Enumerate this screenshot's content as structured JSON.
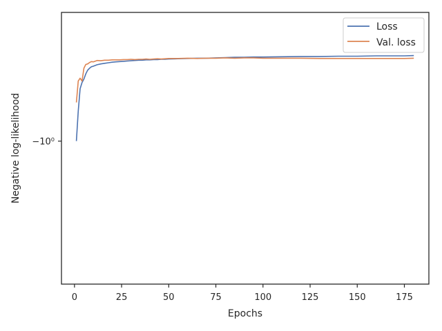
{
  "chart_data": {
    "type": "line",
    "xlabel": "Epochs",
    "ylabel": "Negative log-likelihood",
    "x_ticks": [
      "0",
      "25",
      "50",
      "75",
      "100",
      "125",
      "150",
      "175"
    ],
    "y_tick_label": "−10⁰",
    "y_scale": "symlog",
    "xlim": [
      -6.9,
      188
    ],
    "ylim": [
      -1.05,
      -0.955
    ],
    "legend": {
      "placement": "top-right",
      "entries": [
        "Loss",
        "Val. loss"
      ]
    },
    "colors": {
      "loss": "#4c72b0",
      "val_loss": "#dd8452",
      "axes": "#262626"
    },
    "series": [
      {
        "name": "Loss",
        "color": "#4c72b0",
        "x": [
          1,
          2,
          3,
          4,
          5,
          6,
          7,
          8,
          9,
          10,
          12,
          14,
          16,
          18,
          20,
          22,
          24,
          26,
          28,
          30,
          32,
          34,
          36,
          38,
          40,
          42,
          44,
          46,
          48,
          50,
          55,
          60,
          65,
          70,
          75,
          80,
          85,
          90,
          95,
          100,
          110,
          120,
          130,
          140,
          150,
          160,
          170,
          175,
          180
        ],
        "y": [
          -1.0,
          -0.9895,
          -0.9817,
          -0.9795,
          -0.9783,
          -0.9765,
          -0.9752,
          -0.9745,
          -0.974,
          -0.9738,
          -0.9733,
          -0.973,
          -0.9728,
          -0.9726,
          -0.9724,
          -0.9723,
          -0.9722,
          -0.9721,
          -0.972,
          -0.9719,
          -0.9718,
          -0.9717,
          -0.9717,
          -0.9716,
          -0.9716,
          -0.9715,
          -0.9715,
          -0.9714,
          -0.9714,
          -0.9713,
          -0.9712,
          -0.9711,
          -0.971,
          -0.971,
          -0.9709,
          -0.9708,
          -0.9707,
          -0.9707,
          -0.9706,
          -0.9706,
          -0.9705,
          -0.9704,
          -0.9704,
          -0.9703,
          -0.9703,
          -0.9702,
          -0.9702,
          -0.9702,
          -0.9701
        ]
      },
      {
        "name": "Val. loss",
        "color": "#dd8452",
        "x": [
          1,
          2,
          3,
          4,
          5,
          6,
          7,
          8,
          9,
          10,
          12,
          14,
          16,
          18,
          20,
          22,
          24,
          26,
          28,
          30,
          32,
          34,
          36,
          38,
          40,
          42,
          44,
          46,
          48,
          50,
          55,
          60,
          65,
          70,
          75,
          80,
          85,
          90,
          95,
          100,
          110,
          120,
          130,
          140,
          150,
          160,
          170,
          175,
          180
        ],
        "y": [
          -0.9865,
          -0.979,
          -0.978,
          -0.979,
          -0.9745,
          -0.9732,
          -0.973,
          -0.9725,
          -0.9722,
          -0.9723,
          -0.9718,
          -0.9719,
          -0.9717,
          -0.9717,
          -0.9716,
          -0.9716,
          -0.9716,
          -0.9715,
          -0.9715,
          -0.9714,
          -0.9715,
          -0.9714,
          -0.9714,
          -0.9713,
          -0.9714,
          -0.9713,
          -0.9712,
          -0.9713,
          -0.9712,
          -0.9711,
          -0.9711,
          -0.971,
          -0.9711,
          -0.971,
          -0.971,
          -0.9709,
          -0.971,
          -0.9709,
          -0.9709,
          -0.971,
          -0.971,
          -0.971,
          -0.9711,
          -0.9711,
          -0.9711,
          -0.9711,
          -0.9711,
          -0.9711,
          -0.971
        ]
      }
    ]
  }
}
